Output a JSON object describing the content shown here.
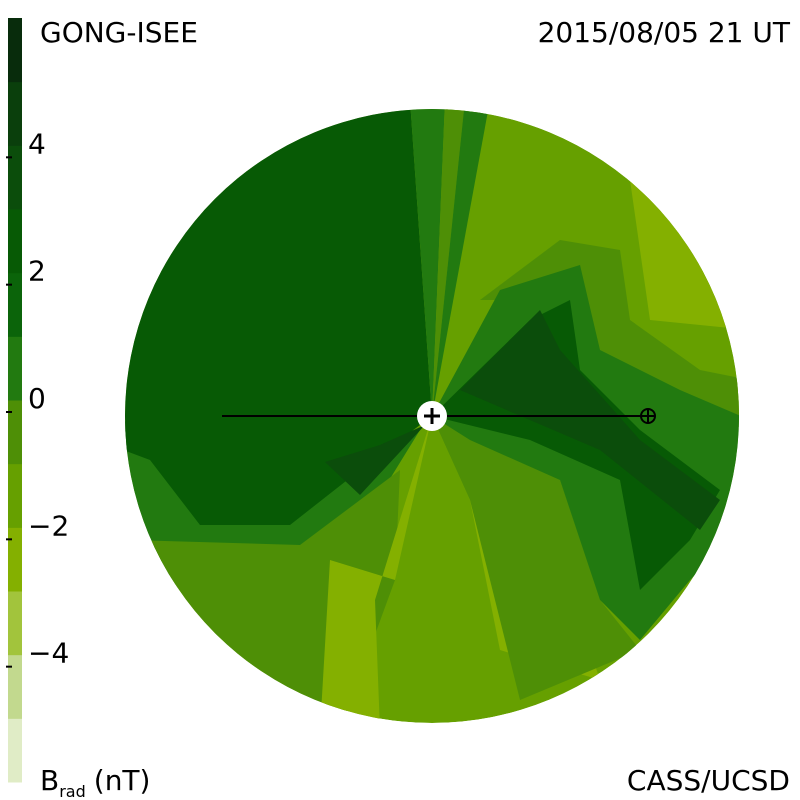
{
  "header": {
    "left": "GONG-ISEE",
    "right": "2015/08/05 21 UT"
  },
  "footer": {
    "right": "CASS/UCSD"
  },
  "colorbar": {
    "label": "B",
    "label_sub": "rad",
    "label_unit": "(nT)",
    "ylim": [
      -6,
      6
    ],
    "yticks": [
      {
        "value": -4,
        "label": "−4"
      },
      {
        "value": -2,
        "label": "−2"
      },
      0,
      2,
      4
    ],
    "colors": [
      "#e0ecc6",
      "#c2d98e",
      "#a2c43c",
      "#84b000",
      "#66a000",
      "#4e8f06",
      "#227a10",
      "#0b640a",
      "#075a05",
      "#0b4d0b",
      "#0a3f0c",
      "#082c0c"
    ]
  }
}
